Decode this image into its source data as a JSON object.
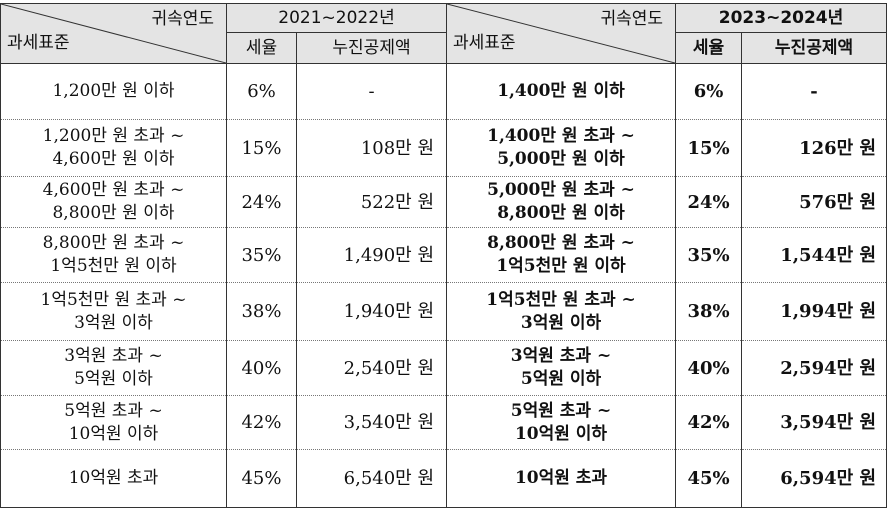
{
  "header": {
    "period_a": "2021~2022년",
    "period_b": "2023~2024년",
    "corner_top": "귀속연도",
    "corner_bottom": "과세표준",
    "rate_label": "세율",
    "deduction_label": "누진공제액"
  },
  "rows": [
    {
      "a": {
        "base": [
          "1,200만 원 이하"
        ],
        "rate": "6%",
        "deduction": "-"
      },
      "b": {
        "base": [
          "1,400만 원 이하"
        ],
        "rate": "6%",
        "deduction": "-"
      }
    },
    {
      "a": {
        "base": [
          "1,200만 원 초과 ~",
          "4,600만 원 이하"
        ],
        "rate": "15%",
        "deduction": "108만 원"
      },
      "b": {
        "base": [
          "1,400만 원 초과 ~",
          "5,000만 원 이하"
        ],
        "rate": "15%",
        "deduction": "126만 원"
      }
    },
    {
      "a": {
        "base": [
          "4,600만 원 초과 ~",
          "8,800만 원 이하"
        ],
        "rate": "24%",
        "deduction": "522만 원"
      },
      "b": {
        "base": [
          "5,000만 원 초과 ~",
          "8,800만 원 이하"
        ],
        "rate": "24%",
        "deduction": "576만 원"
      }
    },
    {
      "a": {
        "base": [
          "8,800만 원 초과 ~",
          "1억5천만 원 이하"
        ],
        "rate": "35%",
        "deduction": "1,490만 원"
      },
      "b": {
        "base": [
          "8,800만 원 초과 ~",
          "1억5천만 원 이하"
        ],
        "rate": "35%",
        "deduction": "1,544만 원"
      }
    },
    {
      "a": {
        "base": [
          "1억5천만 원 초과 ~",
          "3억원 이하"
        ],
        "rate": "38%",
        "deduction": "1,940만 원"
      },
      "b": {
        "base": [
          "1억5천만 원 초과 ~",
          "3억원 이하"
        ],
        "rate": "38%",
        "deduction": "1,994만 원"
      }
    },
    {
      "a": {
        "base": [
          "3억원 초과 ~",
          "5억원 이하"
        ],
        "rate": "40%",
        "deduction": "2,540만 원"
      },
      "b": {
        "base": [
          "3억원 초과 ~",
          "5억원 이하"
        ],
        "rate": "40%",
        "deduction": "2,594만 원"
      }
    },
    {
      "a": {
        "base": [
          "5억원 초과 ~",
          "10억원 이하"
        ],
        "rate": "42%",
        "deduction": "3,540만 원"
      },
      "b": {
        "base": [
          "5억원 초과 ~",
          "10억원 이하"
        ],
        "rate": "42%",
        "deduction": "3,594만 원"
      }
    },
    {
      "a": {
        "base": [
          "10억원 초과"
        ],
        "rate": "45%",
        "deduction": "6,540만 원"
      },
      "b": {
        "base": [
          "10억원 초과"
        ],
        "rate": "45%",
        "deduction": "6,594만 원"
      }
    }
  ]
}
